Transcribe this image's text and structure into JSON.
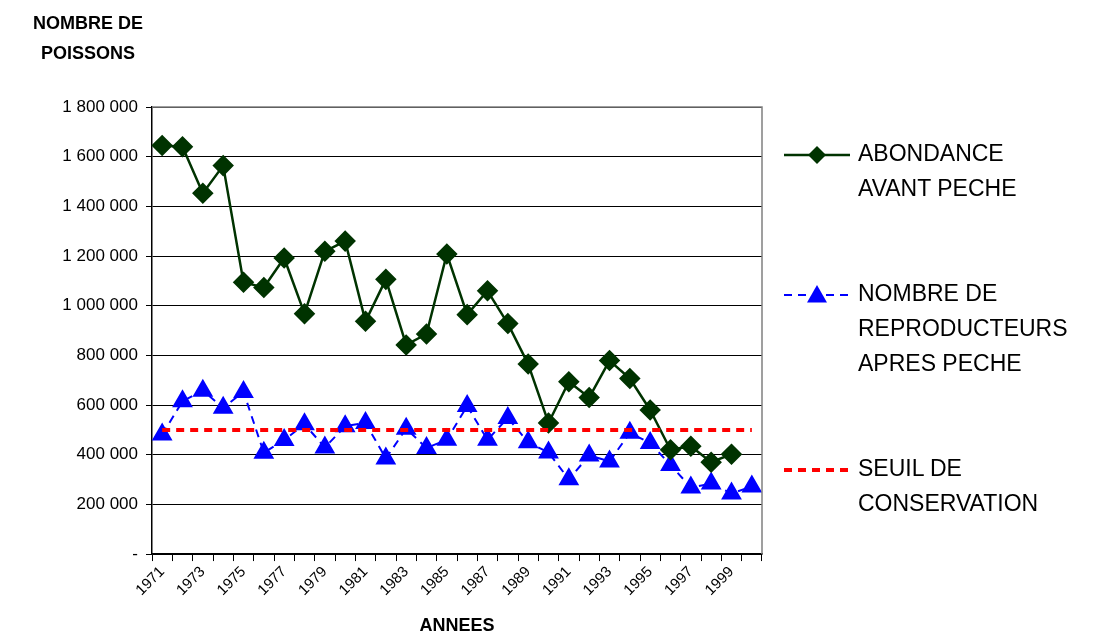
{
  "chart_data": {
    "type": "line",
    "categories": [
      "1971",
      null,
      "1973",
      null,
      "1975",
      null,
      "1977",
      null,
      "1979",
      null,
      "1981",
      null,
      "1983",
      null,
      "1985",
      null,
      "1987",
      null,
      "1989",
      null,
      "1991",
      null,
      "1993",
      null,
      "1995",
      null,
      "1997",
      null,
      "1999",
      null
    ],
    "series": [
      {
        "name": "ABONDANCE AVANT PECHE",
        "color": "#003300",
        "marker": "diamond",
        "line_style": "solid",
        "values": [
          1645000,
          1640000,
          1453000,
          1564000,
          1094000,
          1073000,
          1192000,
          968000,
          1219000,
          1260000,
          937000,
          1106000,
          842000,
          886000,
          1208000,
          964000,
          1060000,
          928000,
          765000,
          528000,
          694000,
          630000,
          779000,
          707000,
          580000,
          420000,
          434000,
          370000,
          402000,
          null
        ]
      },
      {
        "name": "NOMBRE DE REPRODUCTEURS APRES PECHE",
        "color": "#0000ff",
        "marker": "triangle",
        "line_style": "dashed",
        "values": [
          481000,
          615000,
          658000,
          589000,
          653000,
          408000,
          459000,
          523000,
          429000,
          515000,
          528000,
          385000,
          505000,
          427000,
          460000,
          596000,
          460000,
          548000,
          450000,
          409000,
          301000,
          397000,
          373000,
          488000,
          447000,
          359000,
          268000,
          284000,
          244000,
          272000
        ]
      },
      {
        "name": "SEUIL DE CONSERVATION",
        "color": "#ff0000",
        "marker": "none",
        "line_style": "dashed",
        "values": [
          500000,
          500000,
          500000,
          500000,
          500000,
          500000,
          500000,
          500000,
          500000,
          500000,
          500000,
          500000,
          500000,
          500000,
          500000,
          500000,
          500000,
          500000,
          500000,
          500000,
          500000,
          500000,
          500000,
          500000,
          500000,
          500000,
          500000,
          500000,
          500000,
          500000
        ]
      }
    ],
    "xlabel": "ANNEES",
    "ylabel": "NOMBRE DE POISSONS",
    "ylim": [
      0,
      1800000
    ],
    "yticks": [
      {
        "value": 0,
        "label": "-"
      },
      {
        "value": 200000,
        "label": "200 000"
      },
      {
        "value": 400000,
        "label": "400 000"
      },
      {
        "value": 600000,
        "label": "600 000"
      },
      {
        "value": 800000,
        "label": "800 000"
      },
      {
        "value": 1000000,
        "label": "1 000 000"
      },
      {
        "value": 1200000,
        "label": "1 200 000"
      },
      {
        "value": 1400000,
        "label": "1 400 000"
      },
      {
        "value": 1600000,
        "label": "1 600 000"
      },
      {
        "value": 1800000,
        "label": "1 800 000"
      }
    ],
    "grid": "y",
    "legend": "right"
  }
}
